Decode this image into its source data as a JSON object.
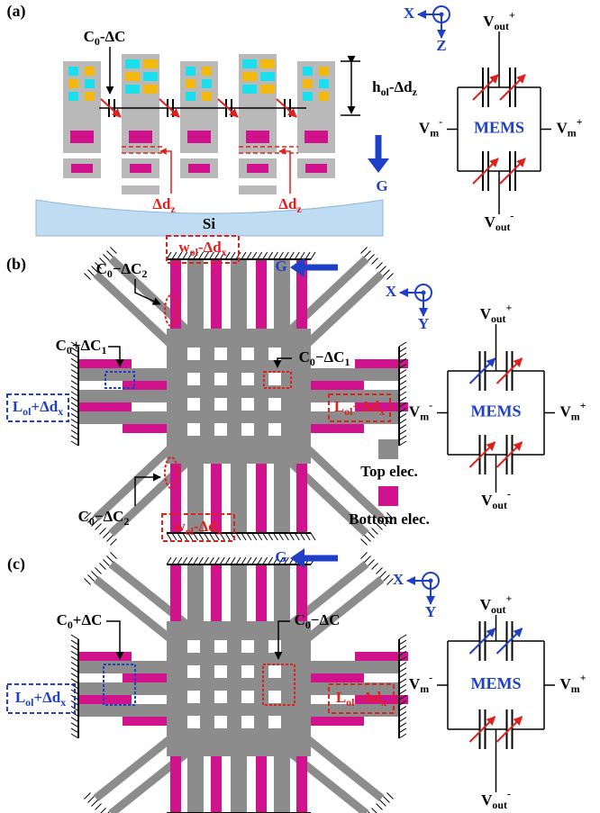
{
  "panel_a": {
    "label": "(a)",
    "capacitance": {
      "parts": [
        "C",
        {
          "sub": "0"
        },
        "-ΔC"
      ]
    },
    "height": {
      "parts": [
        "h",
        {
          "sub": "ol"
        },
        "-Δd",
        {
          "sub": "z"
        }
      ]
    },
    "shift_left": {
      "parts": [
        "Δd",
        {
          "sub": "z"
        }
      ]
    },
    "shift_right": {
      "parts": [
        "Δd",
        {
          "sub": "z"
        }
      ]
    },
    "substrate": "Si",
    "gravity": "G",
    "axis_h": "X",
    "axis_v": "Z",
    "circuit": {
      "top": {
        "parts": [
          "V",
          {
            "sub": "out"
          },
          {
            "sup": "+"
          }
        ]
      },
      "left": {
        "parts": [
          "V",
          {
            "sub": "m"
          },
          {
            "sup": "-"
          }
        ]
      },
      "center": "MEMS",
      "right": {
        "parts": [
          "V",
          {
            "sub": "m"
          },
          {
            "sup": "+"
          }
        ]
      },
      "bottom": {
        "parts": [
          "V",
          {
            "sub": "out"
          },
          {
            "sup": "-"
          }
        ]
      }
    }
  },
  "panel_b": {
    "label": "(b)",
    "width_top": {
      "parts": [
        "w",
        {
          "sub": "ol"
        },
        "-Δd",
        {
          "sub": "x"
        }
      ]
    },
    "c2_top": {
      "parts": [
        "C",
        {
          "sub": "0"
        },
        "−ΔC",
        {
          "sub": "2"
        }
      ]
    },
    "c1_left": {
      "parts": [
        "C",
        {
          "sub": "0"
        },
        "+ΔC",
        {
          "sub": "1"
        }
      ]
    },
    "c1_right": {
      "parts": [
        "C",
        {
          "sub": "0"
        },
        "−ΔC",
        {
          "sub": "1"
        }
      ]
    },
    "length_left": {
      "parts": [
        "L",
        {
          "sub": "ol"
        },
        "+Δd",
        {
          "sub": "x"
        }
      ]
    },
    "length_right": {
      "parts": [
        "L",
        {
          "sub": "ol"
        },
        "−Δd",
        {
          "sub": "x"
        }
      ]
    },
    "c2_bottom": {
      "parts": [
        "C",
        {
          "sub": "0"
        },
        "−ΔC",
        {
          "sub": "2"
        }
      ]
    },
    "width_bottom": {
      "parts": [
        "w",
        {
          "sub": "ol"
        },
        "-Δd",
        {
          "sub": "x"
        }
      ]
    },
    "gravity": "G",
    "axis_h": "X",
    "axis_v": "Y",
    "legend_top": "Top elec.",
    "legend_bottom": "Bottom elec.",
    "circuit": {
      "top": {
        "parts": [
          "V",
          {
            "sub": "out"
          },
          {
            "sup": "+"
          }
        ]
      },
      "left": {
        "parts": [
          "V",
          {
            "sub": "m"
          },
          {
            "sup": "-"
          }
        ]
      },
      "center": "MEMS",
      "right": {
        "parts": [
          "V",
          {
            "sub": "m"
          },
          {
            "sup": "+"
          }
        ]
      },
      "bottom": {
        "parts": [
          "V",
          {
            "sub": "out"
          },
          {
            "sup": "-"
          }
        ]
      }
    }
  },
  "panel_c": {
    "label": "(c)",
    "c_left": {
      "parts": [
        "C",
        {
          "sub": "0"
        },
        "+ΔC"
      ]
    },
    "c_right": {
      "parts": [
        "C",
        {
          "sub": "0"
        },
        "−ΔC"
      ]
    },
    "length_left": {
      "parts": [
        "L",
        {
          "sub": "ol"
        },
        "+Δd",
        {
          "sub": "x"
        }
      ]
    },
    "length_right": {
      "parts": [
        "L",
        {
          "sub": "ol"
        },
        "−Δd",
        {
          "sub": "x"
        }
      ]
    },
    "gravity": "G",
    "axis_h": "X",
    "axis_v": "Y",
    "circuit": {
      "top": {
        "parts": [
          "V",
          {
            "sub": "out"
          },
          {
            "sup": "+"
          }
        ]
      },
      "left": {
        "parts": [
          "V",
          {
            "sub": "m"
          },
          {
            "sup": "-"
          }
        ]
      },
      "center": "MEMS",
      "right": {
        "parts": [
          "V",
          {
            "sub": "m"
          },
          {
            "sup": "+"
          }
        ]
      },
      "bottom": {
        "parts": [
          "V",
          {
            "sub": "out"
          },
          {
            "sup": "-"
          }
        ]
      }
    }
  }
}
